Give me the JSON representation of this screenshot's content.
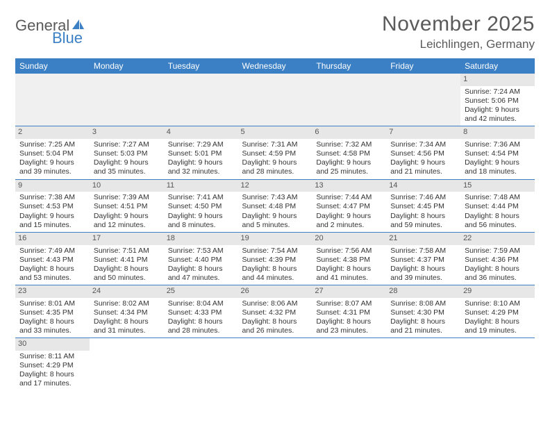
{
  "logo": {
    "part1": "General",
    "part2": "Blue"
  },
  "title": "November 2025",
  "location": "Leichlingen, Germany",
  "colors": {
    "header_bg": "#3b7fc4",
    "header_text": "#ffffff",
    "daynum_bg": "#e7e7e7",
    "border": "#3b7fc4",
    "text": "#333333",
    "title_text": "#5a5a5a"
  },
  "weekdays": [
    "Sunday",
    "Monday",
    "Tuesday",
    "Wednesday",
    "Thursday",
    "Friday",
    "Saturday"
  ],
  "grid": [
    [
      null,
      null,
      null,
      null,
      null,
      null,
      {
        "n": "1",
        "sr": "7:24 AM",
        "ss": "5:06 PM",
        "dl": "9 hours and 42 minutes."
      }
    ],
    [
      {
        "n": "2",
        "sr": "7:25 AM",
        "ss": "5:04 PM",
        "dl": "9 hours and 39 minutes."
      },
      {
        "n": "3",
        "sr": "7:27 AM",
        "ss": "5:03 PM",
        "dl": "9 hours and 35 minutes."
      },
      {
        "n": "4",
        "sr": "7:29 AM",
        "ss": "5:01 PM",
        "dl": "9 hours and 32 minutes."
      },
      {
        "n": "5",
        "sr": "7:31 AM",
        "ss": "4:59 PM",
        "dl": "9 hours and 28 minutes."
      },
      {
        "n": "6",
        "sr": "7:32 AM",
        "ss": "4:58 PM",
        "dl": "9 hours and 25 minutes."
      },
      {
        "n": "7",
        "sr": "7:34 AM",
        "ss": "4:56 PM",
        "dl": "9 hours and 21 minutes."
      },
      {
        "n": "8",
        "sr": "7:36 AM",
        "ss": "4:54 PM",
        "dl": "9 hours and 18 minutes."
      }
    ],
    [
      {
        "n": "9",
        "sr": "7:38 AM",
        "ss": "4:53 PM",
        "dl": "9 hours and 15 minutes."
      },
      {
        "n": "10",
        "sr": "7:39 AM",
        "ss": "4:51 PM",
        "dl": "9 hours and 12 minutes."
      },
      {
        "n": "11",
        "sr": "7:41 AM",
        "ss": "4:50 PM",
        "dl": "9 hours and 8 minutes."
      },
      {
        "n": "12",
        "sr": "7:43 AM",
        "ss": "4:48 PM",
        "dl": "9 hours and 5 minutes."
      },
      {
        "n": "13",
        "sr": "7:44 AM",
        "ss": "4:47 PM",
        "dl": "9 hours and 2 minutes."
      },
      {
        "n": "14",
        "sr": "7:46 AM",
        "ss": "4:45 PM",
        "dl": "8 hours and 59 minutes."
      },
      {
        "n": "15",
        "sr": "7:48 AM",
        "ss": "4:44 PM",
        "dl": "8 hours and 56 minutes."
      }
    ],
    [
      {
        "n": "16",
        "sr": "7:49 AM",
        "ss": "4:43 PM",
        "dl": "8 hours and 53 minutes."
      },
      {
        "n": "17",
        "sr": "7:51 AM",
        "ss": "4:41 PM",
        "dl": "8 hours and 50 minutes."
      },
      {
        "n": "18",
        "sr": "7:53 AM",
        "ss": "4:40 PM",
        "dl": "8 hours and 47 minutes."
      },
      {
        "n": "19",
        "sr": "7:54 AM",
        "ss": "4:39 PM",
        "dl": "8 hours and 44 minutes."
      },
      {
        "n": "20",
        "sr": "7:56 AM",
        "ss": "4:38 PM",
        "dl": "8 hours and 41 minutes."
      },
      {
        "n": "21",
        "sr": "7:58 AM",
        "ss": "4:37 PM",
        "dl": "8 hours and 39 minutes."
      },
      {
        "n": "22",
        "sr": "7:59 AM",
        "ss": "4:36 PM",
        "dl": "8 hours and 36 minutes."
      }
    ],
    [
      {
        "n": "23",
        "sr": "8:01 AM",
        "ss": "4:35 PM",
        "dl": "8 hours and 33 minutes."
      },
      {
        "n": "24",
        "sr": "8:02 AM",
        "ss": "4:34 PM",
        "dl": "8 hours and 31 minutes."
      },
      {
        "n": "25",
        "sr": "8:04 AM",
        "ss": "4:33 PM",
        "dl": "8 hours and 28 minutes."
      },
      {
        "n": "26",
        "sr": "8:06 AM",
        "ss": "4:32 PM",
        "dl": "8 hours and 26 minutes."
      },
      {
        "n": "27",
        "sr": "8:07 AM",
        "ss": "4:31 PM",
        "dl": "8 hours and 23 minutes."
      },
      {
        "n": "28",
        "sr": "8:08 AM",
        "ss": "4:30 PM",
        "dl": "8 hours and 21 minutes."
      },
      {
        "n": "29",
        "sr": "8:10 AM",
        "ss": "4:29 PM",
        "dl": "8 hours and 19 minutes."
      }
    ],
    [
      {
        "n": "30",
        "sr": "8:11 AM",
        "ss": "4:29 PM",
        "dl": "8 hours and 17 minutes."
      },
      null,
      null,
      null,
      null,
      null,
      null
    ]
  ],
  "labels": {
    "sunrise": "Sunrise:",
    "sunset": "Sunset:",
    "daylight": "Daylight:"
  }
}
